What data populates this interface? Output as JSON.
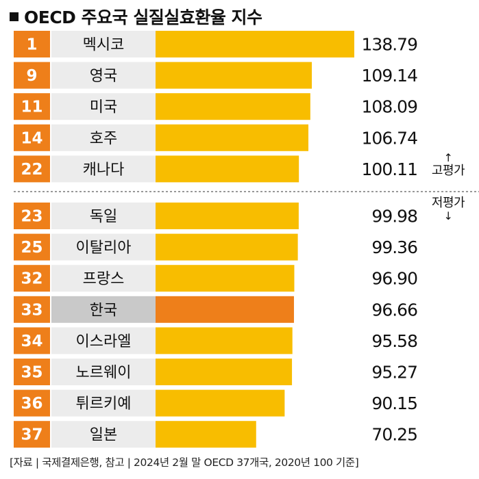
{
  "title": "OECD 주요국 실질실효환율 지수",
  "annotations": {
    "overvalued": "고평가",
    "undervalued": "저평가"
  },
  "source": "[자료 | 국제결제은행, 참고 | 2024년 2월 말 OECD 37개국, 2020년 100 기준]",
  "colors": {
    "rank_box": "#EE7F1A",
    "bar": "#F8BD00",
    "bar_highlight": "#EE7F1A",
    "label_box": "#ECECEC",
    "label_box_highlight": "#C9C9C9"
  },
  "chart_data": {
    "type": "bar",
    "orientation": "horizontal",
    "title": "OECD 주요국 실질실효환율 지수",
    "categories": [
      "멕시코",
      "영국",
      "미국",
      "호주",
      "캐나다",
      "독일",
      "이탈리아",
      "프랑스",
      "한국",
      "이스라엘",
      "노르웨이",
      "튀르키예",
      "일본"
    ],
    "ranks": [
      "1",
      "9",
      "11",
      "14",
      "22",
      "23",
      "25",
      "32",
      "33",
      "34",
      "35",
      "36",
      "37"
    ],
    "values": [
      138.79,
      109.14,
      108.09,
      106.74,
      100.11,
      99.98,
      99.36,
      96.9,
      96.66,
      95.58,
      95.27,
      90.15,
      70.25
    ],
    "value_labels": [
      "138.79",
      "109.14",
      "108.09",
      "106.74",
      "100.11",
      "99.98",
      "99.36",
      "96.90",
      "96.66",
      "95.58",
      "95.27",
      "90.15",
      "70.25"
    ],
    "highlight": "한국",
    "divider_after_category": "캐나다",
    "grid": false,
    "legend": "none"
  }
}
